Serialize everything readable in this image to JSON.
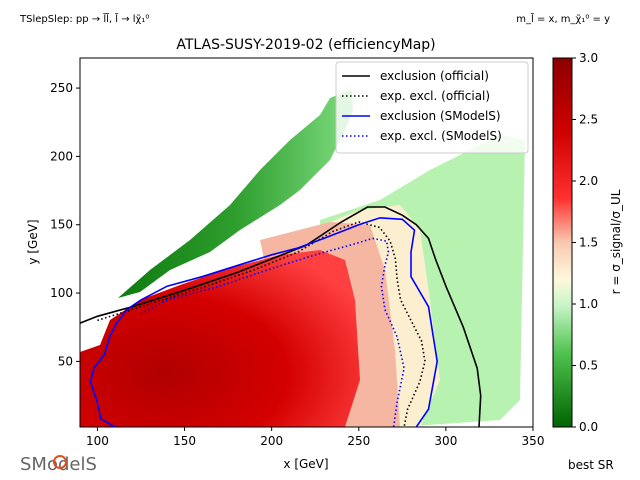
{
  "header": {
    "process_label": "TSlepSlep: pp → l̃l̃, l̃ → lχ̃₁⁰",
    "mass_label": "m_l̃ = x, m_χ̃₁⁰ = y"
  },
  "footer": {
    "logo_text": "SModelS",
    "best_sr_label": "best SR"
  },
  "colorbar": {
    "label": "r = σ_signal/σ_UL",
    "min": 0,
    "max": 3,
    "ticks": [
      "0.0",
      "0.5",
      "1.0",
      "1.5",
      "2.0",
      "2.5",
      "3.0"
    ],
    "colors": [
      "#006400",
      "#90ee90",
      "#fffacd",
      "#ff0000",
      "#8b0000"
    ]
  },
  "chart_data": {
    "type": "heatmap",
    "title": "ATLAS-SUSY-2019-02 (efficiencyMap)",
    "xlabel": "x [GeV]",
    "ylabel": "y [GeV]",
    "xlim": [
      90,
      350
    ],
    "ylim": [
      2,
      272
    ],
    "x_ticks": [
      100,
      150,
      200,
      250,
      300,
      350
    ],
    "y_ticks": [
      50,
      100,
      150,
      200,
      250
    ],
    "legend_position": "top-right",
    "legend": [
      {
        "name": "exclusion (official)",
        "color": "#000000",
        "style": "solid"
      },
      {
        "name": "exp. excl. (official)",
        "color": "#000000",
        "style": "dotted"
      },
      {
        "name": "exclusion (SModelS)",
        "color": "#0000ff",
        "style": "solid"
      },
      {
        "name": "exp. excl. (SModelS)",
        "color": "#0000ff",
        "style": "dotted"
      }
    ],
    "series": [
      {
        "name": "exclusion (official)",
        "points": [
          [
            90,
            78
          ],
          [
            100,
            83
          ],
          [
            120,
            90
          ],
          [
            150,
            102
          ],
          [
            180,
            115
          ],
          [
            200,
            125
          ],
          [
            220,
            135
          ],
          [
            240,
            152
          ],
          [
            255,
            163
          ],
          [
            265,
            163
          ],
          [
            275,
            157
          ],
          [
            283,
            150
          ],
          [
            290,
            140
          ],
          [
            294,
            125
          ],
          [
            300,
            105
          ],
          [
            310,
            75
          ],
          [
            318,
            45
          ],
          [
            320,
            25
          ],
          [
            319,
            2
          ]
        ]
      },
      {
        "name": "exp. excl. (official)",
        "points": [
          [
            100,
            80
          ],
          [
            110,
            84
          ],
          [
            130,
            92
          ],
          [
            160,
            104
          ],
          [
            190,
            117
          ],
          [
            215,
            130
          ],
          [
            235,
            145
          ],
          [
            250,
            152
          ],
          [
            262,
            148
          ],
          [
            268,
            138
          ],
          [
            271,
            125
          ],
          [
            272,
            110
          ],
          [
            274,
            95
          ],
          [
            280,
            80
          ],
          [
            286,
            65
          ],
          [
            288,
            50
          ],
          [
            285,
            35
          ],
          [
            278,
            15
          ],
          [
            276,
            2
          ]
        ]
      },
      {
        "name": "exclusion (SModelS)",
        "points": [
          [
            110,
            2
          ],
          [
            102,
            8
          ],
          [
            100,
            20
          ],
          [
            96,
            35
          ],
          [
            98,
            45
          ],
          [
            104,
            55
          ],
          [
            107,
            68
          ],
          [
            111,
            78
          ],
          [
            117,
            88
          ],
          [
            125,
            95
          ],
          [
            140,
            105
          ],
          [
            160,
            112
          ],
          [
            180,
            120
          ],
          [
            200,
            128
          ],
          [
            215,
            133
          ],
          [
            230,
            140
          ],
          [
            240,
            145
          ],
          [
            250,
            150
          ],
          [
            262,
            155
          ],
          [
            275,
            154
          ],
          [
            282,
            146
          ],
          [
            280,
            130
          ],
          [
            280,
            112
          ],
          [
            290,
            90
          ],
          [
            295,
            50
          ],
          [
            290,
            15
          ],
          [
            283,
            2
          ]
        ]
      },
      {
        "name": "exp. excl. (SModelS)",
        "points": [
          [
            125,
            85
          ],
          [
            140,
            95
          ],
          [
            170,
            105
          ],
          [
            200,
            118
          ],
          [
            225,
            128
          ],
          [
            245,
            135
          ],
          [
            258,
            140
          ],
          [
            266,
            138
          ],
          [
            267,
            130
          ],
          [
            265,
            120
          ],
          [
            263,
            105
          ],
          [
            265,
            88
          ],
          [
            272,
            68
          ],
          [
            276,
            45
          ],
          [
            272,
            20
          ],
          [
            270,
            2
          ]
        ]
      }
    ]
  }
}
